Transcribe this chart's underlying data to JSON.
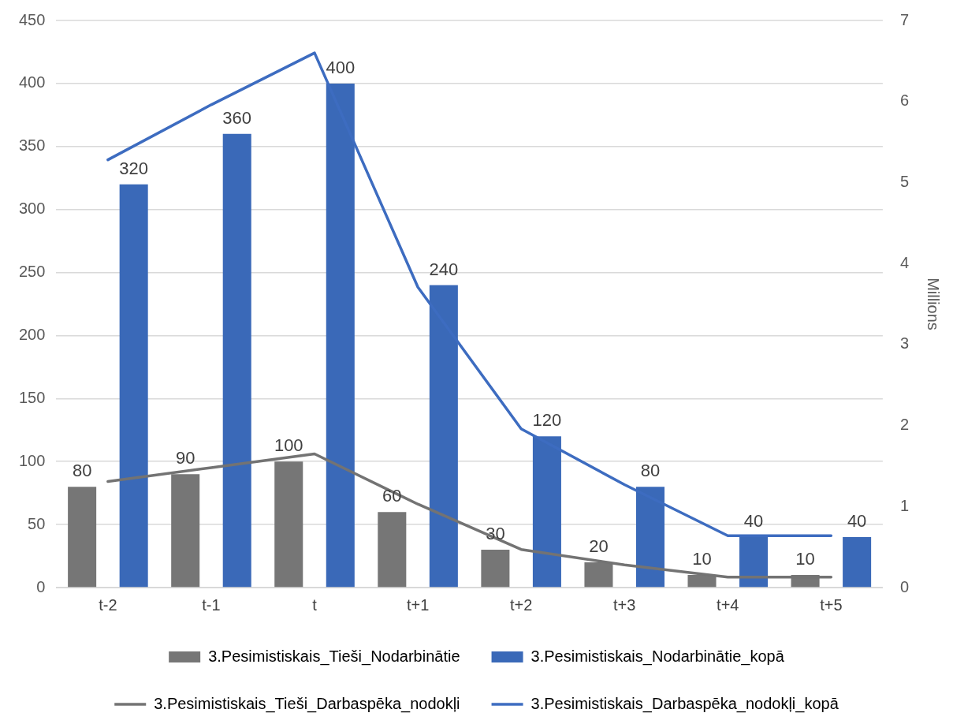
{
  "chart_data": {
    "type": "bar",
    "categories": [
      "t-2",
      "t-1",
      "t",
      "t+1",
      "t+2",
      "t+3",
      "t+4",
      "t+5"
    ],
    "y2label": "Millions",
    "ylim": [
      0,
      450
    ],
    "yticks": [
      0,
      50,
      100,
      150,
      200,
      250,
      300,
      350,
      400,
      450
    ],
    "y2lim": [
      0,
      7
    ],
    "y2ticks": [
      0,
      1,
      2,
      3,
      4,
      5,
      6,
      7
    ],
    "grid": "y",
    "legend": "bottom",
    "marker": "none",
    "line_style": "solid",
    "series": [
      {
        "name": "3.Pesimistiskais_Tieši_Nodarbinātie",
        "color": "#767676",
        "values": [
          80,
          90,
          100,
          60,
          30,
          20,
          10,
          10
        ],
        "value_labels": [
          "80",
          "90",
          "100",
          "60",
          "30",
          "20",
          "10",
          "10"
        ]
      },
      {
        "name": "3.Pesimistiskais_Nodarbinātie_kopā",
        "color": "#3a69b8",
        "values": [
          320,
          360,
          400,
          240,
          120,
          80,
          40,
          40
        ],
        "value_labels": [
          "320",
          "360",
          "400",
          "240",
          "120",
          "80",
          "40",
          "40"
        ]
      },
      {
        "name": "3.Pesimistiskais_Tieši_Darbaspēka_nodokļi",
        "type": "line",
        "axis": "y2",
        "color": "#737373",
        "values": [
          1.31,
          1.48,
          1.65,
          1.03,
          0.47,
          0.28,
          0.13,
          0.13
        ]
      },
      {
        "name": "3.Pesimistiskais_Darbaspēka_nodokļi_kopā",
        "type": "line",
        "axis": "y2",
        "color": "#3d6cc0",
        "values": [
          5.28,
          5.96,
          6.6,
          3.71,
          1.96,
          1.27,
          0.64,
          0.64
        ]
      }
    ]
  }
}
